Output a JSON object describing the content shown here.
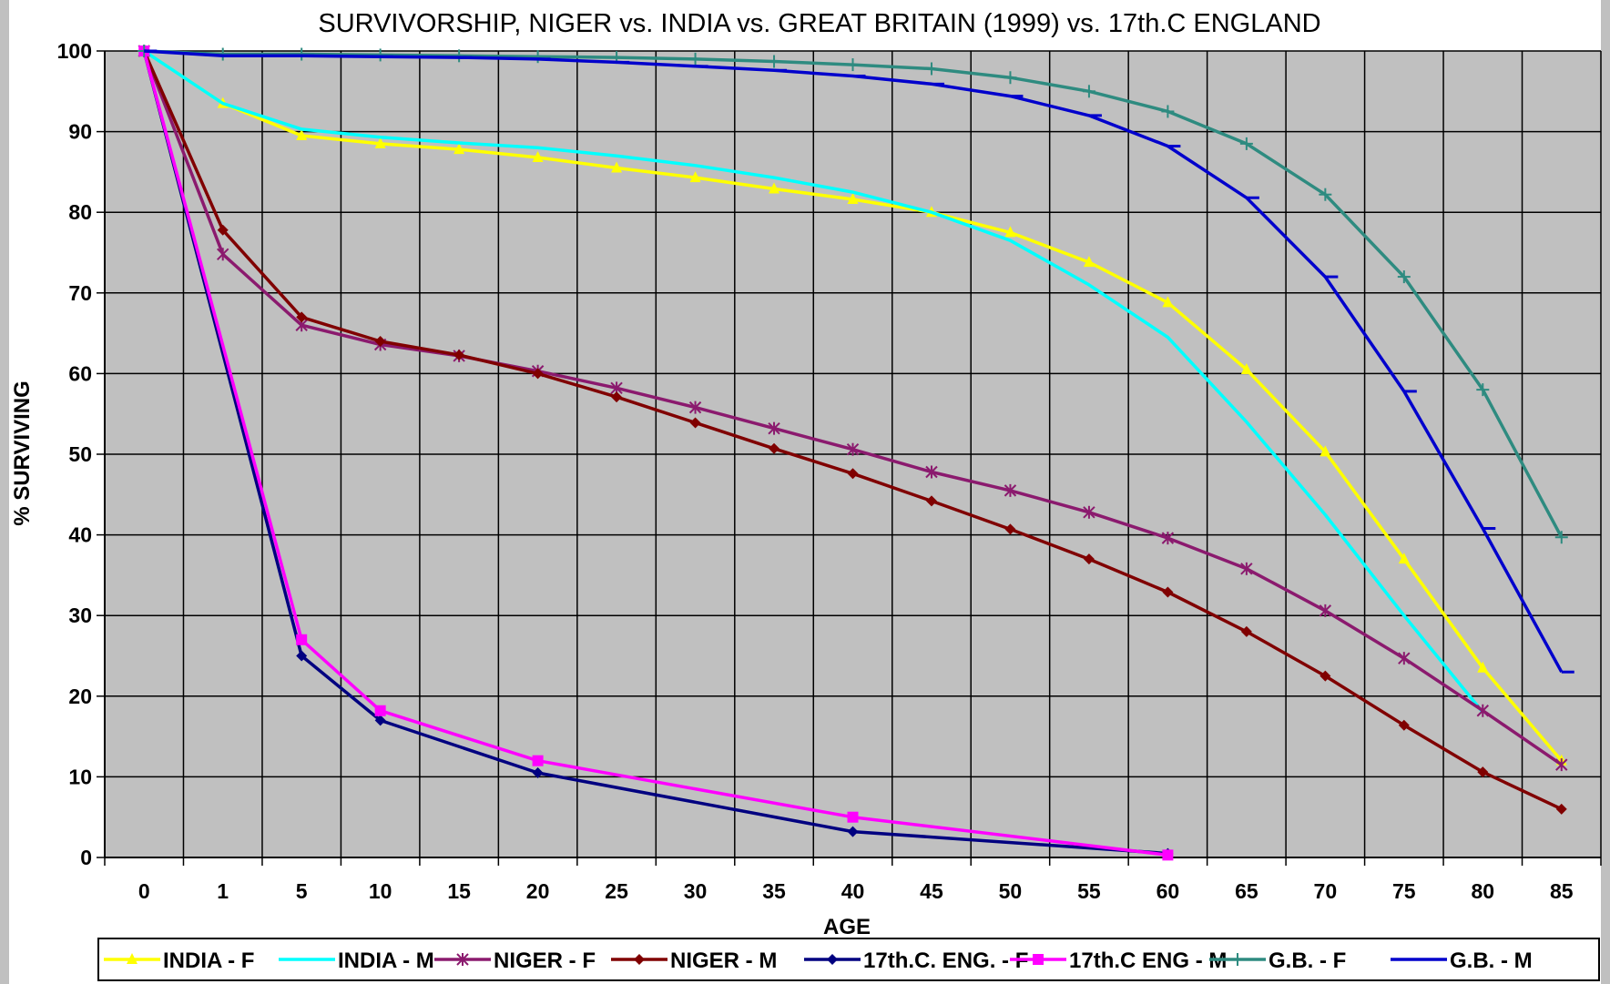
{
  "chart_data": {
    "type": "line",
    "title": "SURVIVORSHIP, NIGER vs. INDIA vs. GREAT BRITAIN (1999) vs. 17th.C ENGLAND",
    "xlabel": "AGE",
    "ylabel": "% SURVIVING",
    "categories": [
      "0",
      "1",
      "5",
      "10",
      "15",
      "20",
      "25",
      "30",
      "35",
      "40",
      "45",
      "50",
      "55",
      "60",
      "65",
      "70",
      "75",
      "80",
      "85"
    ],
    "ylim": [
      0,
      100
    ],
    "yticks": [
      "0",
      "10",
      "20",
      "30",
      "40",
      "50",
      "60",
      "70",
      "80",
      "90",
      "100"
    ],
    "grid": true,
    "legend": "bottom",
    "plot_background": "#c0c0c0",
    "series": [
      {
        "name": "INDIA - F",
        "color": "#ffff00",
        "marker": "triangle",
        "values": [
          100,
          93.5,
          89.5,
          88.5,
          87.8,
          86.8,
          85.5,
          84.3,
          82.9,
          81.6,
          80.0,
          77.5,
          73.8,
          68.8,
          60.5,
          50.3,
          37.0,
          23.5,
          12.0
        ]
      },
      {
        "name": "INDIA - M",
        "color": "#00ffff",
        "marker": "none",
        "values": [
          100,
          93.5,
          90.3,
          89.3,
          88.6,
          88.0,
          87.0,
          85.8,
          84.3,
          82.5,
          80.0,
          76.5,
          71.0,
          64.5,
          54.0,
          42.5,
          30.0,
          18.0,
          null
        ]
      },
      {
        "name": "NIGER - F",
        "color": "#8b1a6e",
        "marker": "star",
        "values": [
          100,
          74.8,
          66.0,
          63.6,
          62.2,
          60.3,
          58.2,
          55.8,
          53.2,
          50.6,
          47.8,
          45.5,
          42.8,
          39.6,
          35.8,
          30.6,
          24.7,
          18.2,
          11.5
        ]
      },
      {
        "name": "NIGER - M",
        "color": "#800000",
        "marker": "diamond",
        "values": [
          100,
          77.8,
          67.0,
          64.0,
          62.3,
          60.0,
          57.1,
          53.9,
          50.7,
          47.6,
          44.2,
          40.7,
          37.0,
          32.9,
          28.0,
          22.5,
          16.4,
          10.6,
          6.0
        ]
      },
      {
        "name": "17th.C. ENG. - F",
        "color": "#000080",
        "marker": "diamond",
        "values": [
          100,
          null,
          25.0,
          17.0,
          null,
          10.5,
          null,
          null,
          null,
          3.2,
          null,
          null,
          null,
          0.5,
          null,
          null,
          null,
          null,
          null
        ]
      },
      {
        "name": "17th.C ENG - M",
        "color": "#ff00ff",
        "marker": "square",
        "values": [
          100,
          null,
          27.0,
          18.2,
          null,
          12.0,
          null,
          null,
          null,
          5.0,
          null,
          null,
          null,
          0.3,
          null,
          null,
          null,
          null,
          null
        ]
      },
      {
        "name": "G.B. - F",
        "color": "#2e8b80",
        "marker": "plus",
        "values": [
          100,
          99.6,
          99.6,
          99.5,
          99.4,
          99.3,
          99.2,
          99.0,
          98.7,
          98.3,
          97.8,
          96.7,
          95.0,
          92.5,
          88.5,
          82.2,
          72.0,
          58.0,
          39.7
        ]
      },
      {
        "name": "G.B. - M",
        "color": "#0000cc",
        "marker": "dash",
        "values": [
          100,
          99.4,
          99.4,
          99.3,
          99.2,
          99.0,
          98.6,
          98.1,
          97.6,
          96.9,
          95.9,
          94.4,
          92.0,
          88.2,
          81.8,
          72.0,
          57.8,
          40.8,
          23.0
        ]
      }
    ]
  }
}
